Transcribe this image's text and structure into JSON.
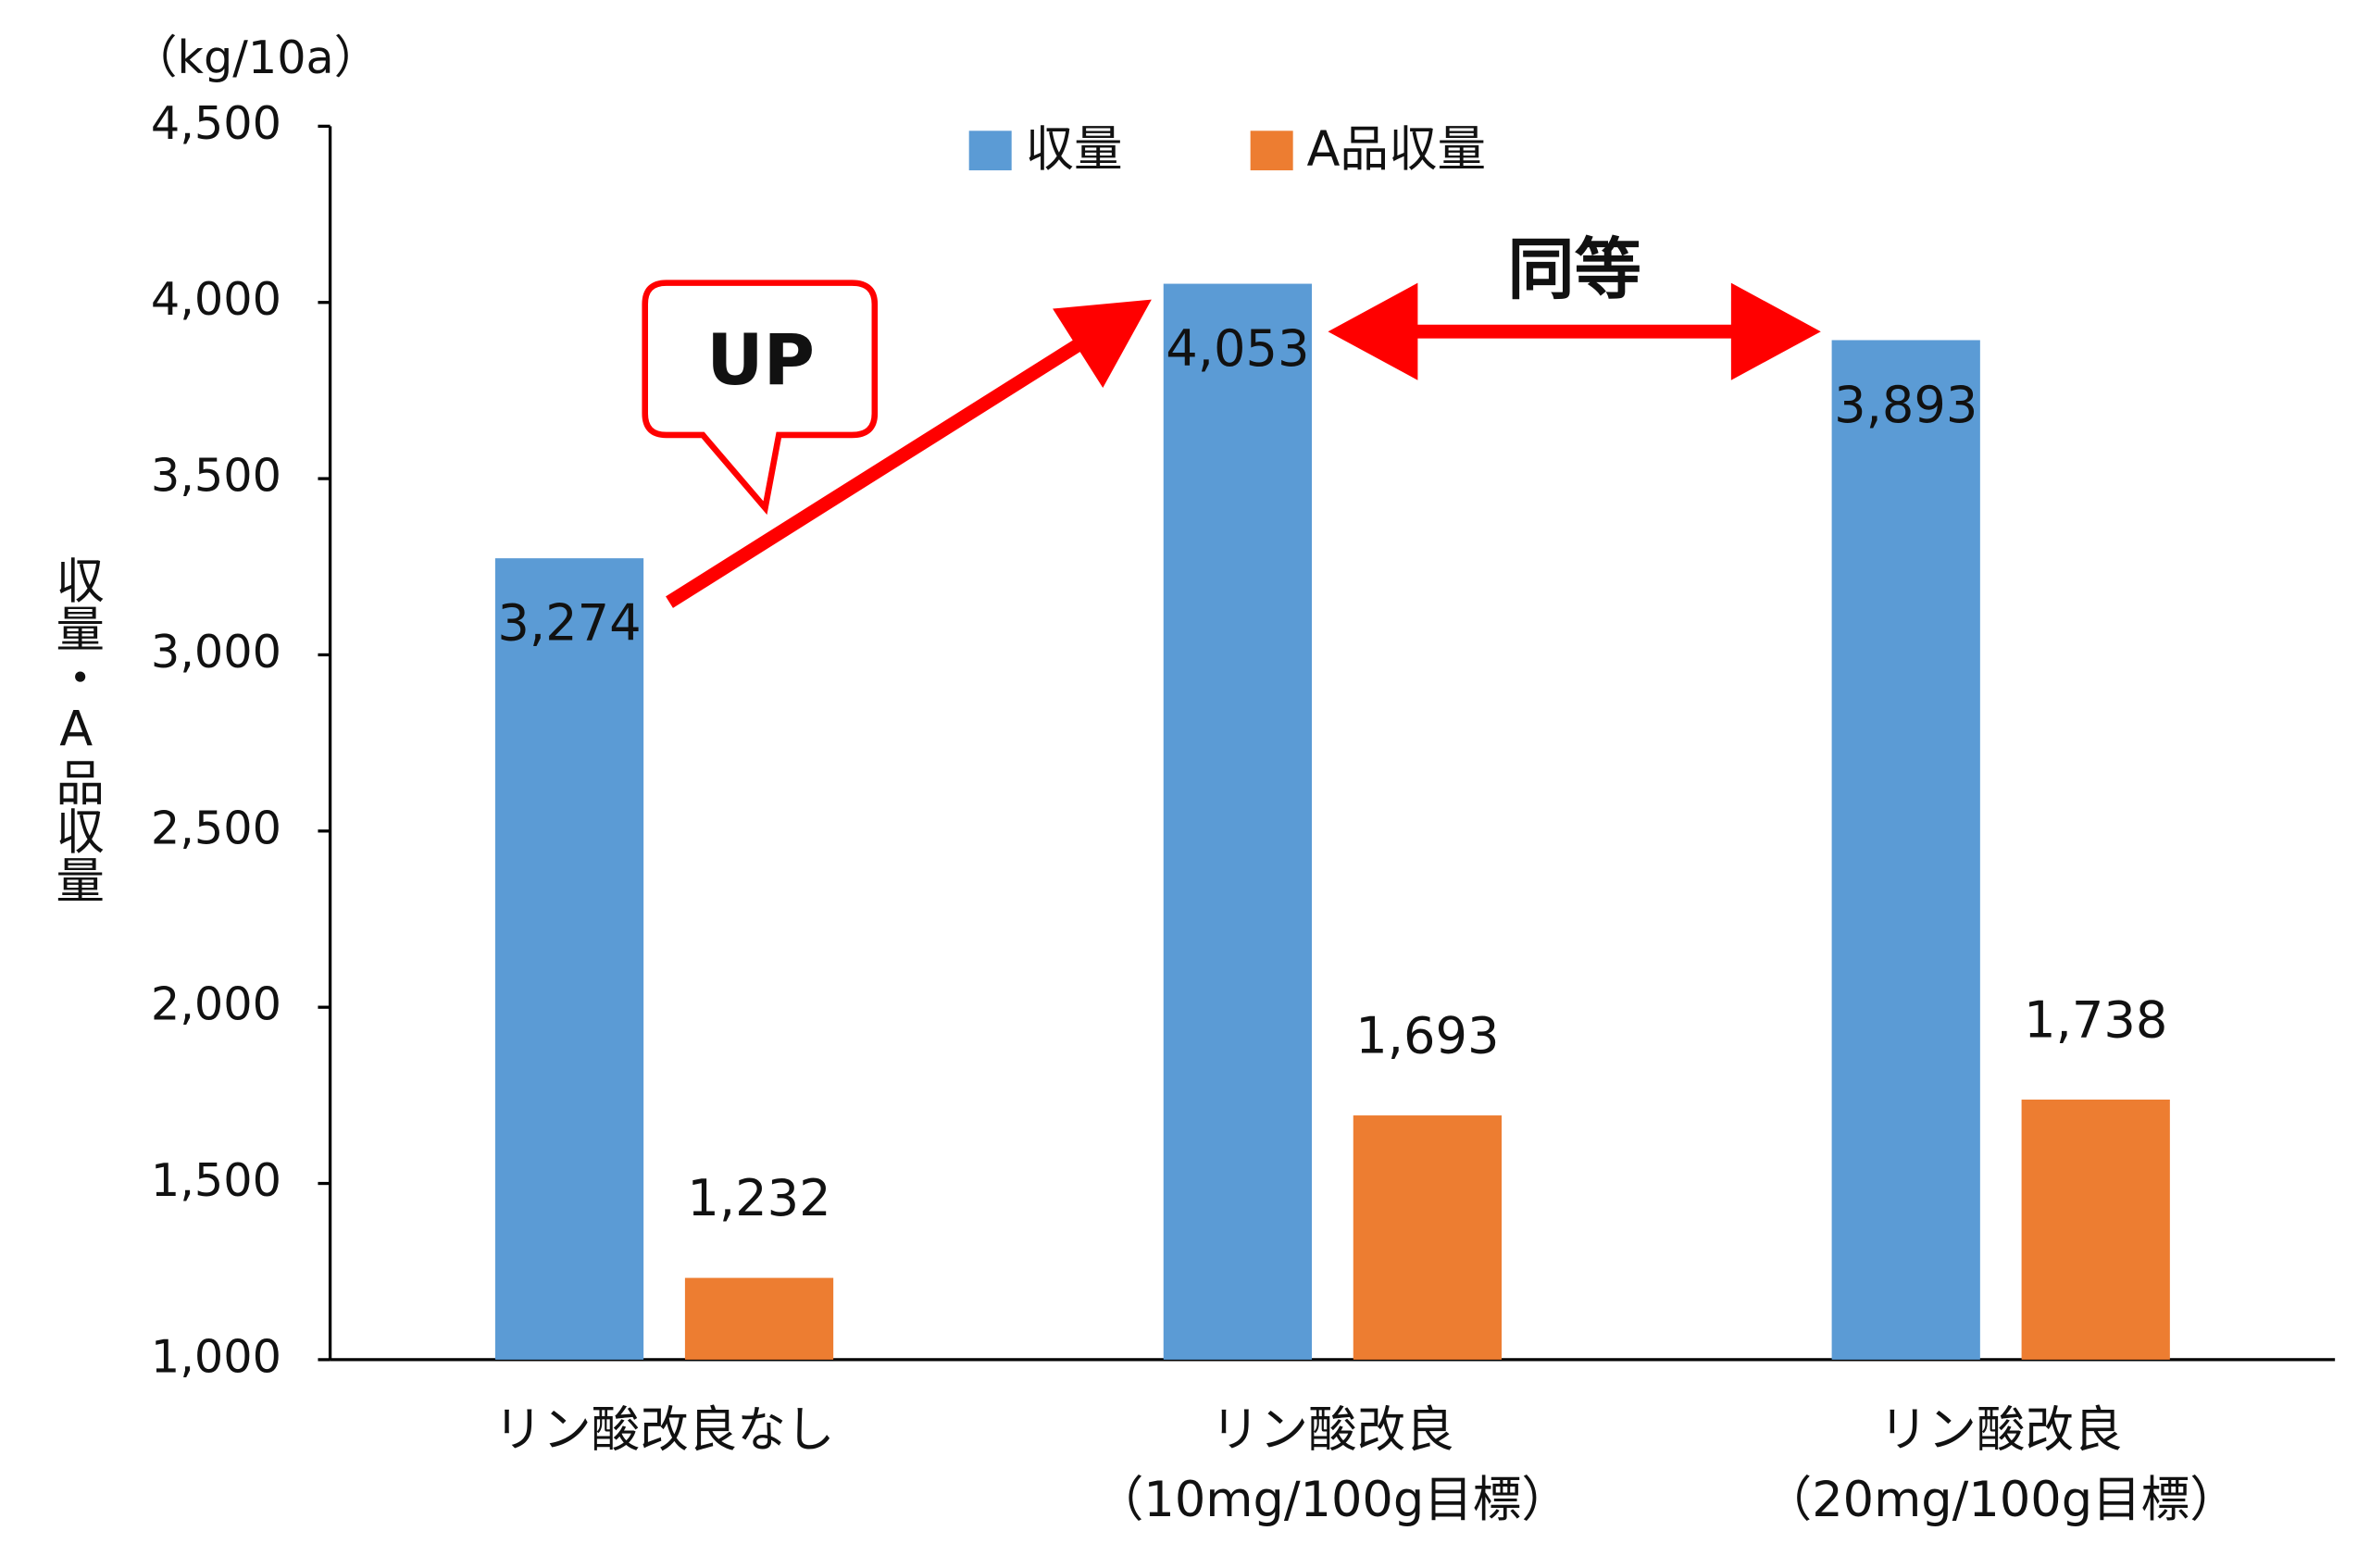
{
  "chart_data": {
    "type": "bar",
    "unit_label": "（kg/10a）",
    "y_axis_label": "収量・A品収量",
    "categories": [
      [
        "リン酸改良なし"
      ],
      [
        "リン酸改良",
        "（10mg/100g目標）"
      ],
      [
        "リン酸改良",
        "（20mg/100g目標）"
      ]
    ],
    "series": [
      {
        "name": "収量",
        "color": "#5b9bd5",
        "values": [
          3274,
          4053,
          3893
        ],
        "value_labels": [
          "3,274",
          "4,053",
          "3,893"
        ]
      },
      {
        "name": "A品収量",
        "color": "#ed7d31",
        "values": [
          1232,
          1693,
          1738
        ],
        "value_labels": [
          "1,232",
          "1,693",
          "1,738"
        ]
      }
    ],
    "ylim": [
      1000,
      4500
    ],
    "yticks": [
      {
        "value": 1000,
        "label": "1,000"
      },
      {
        "value": 1500,
        "label": "1,500"
      },
      {
        "value": 2000,
        "label": "2,000"
      },
      {
        "value": 2500,
        "label": "2,500"
      },
      {
        "value": 3000,
        "label": "3,000"
      },
      {
        "value": 3500,
        "label": "3,500"
      },
      {
        "value": 4000,
        "label": "4,000"
      },
      {
        "value": 4500,
        "label": "4,500"
      }
    ],
    "legend_position": "top",
    "annotations": {
      "up": "UP",
      "equal": "同等"
    },
    "annotation_color": "#ff0000"
  }
}
